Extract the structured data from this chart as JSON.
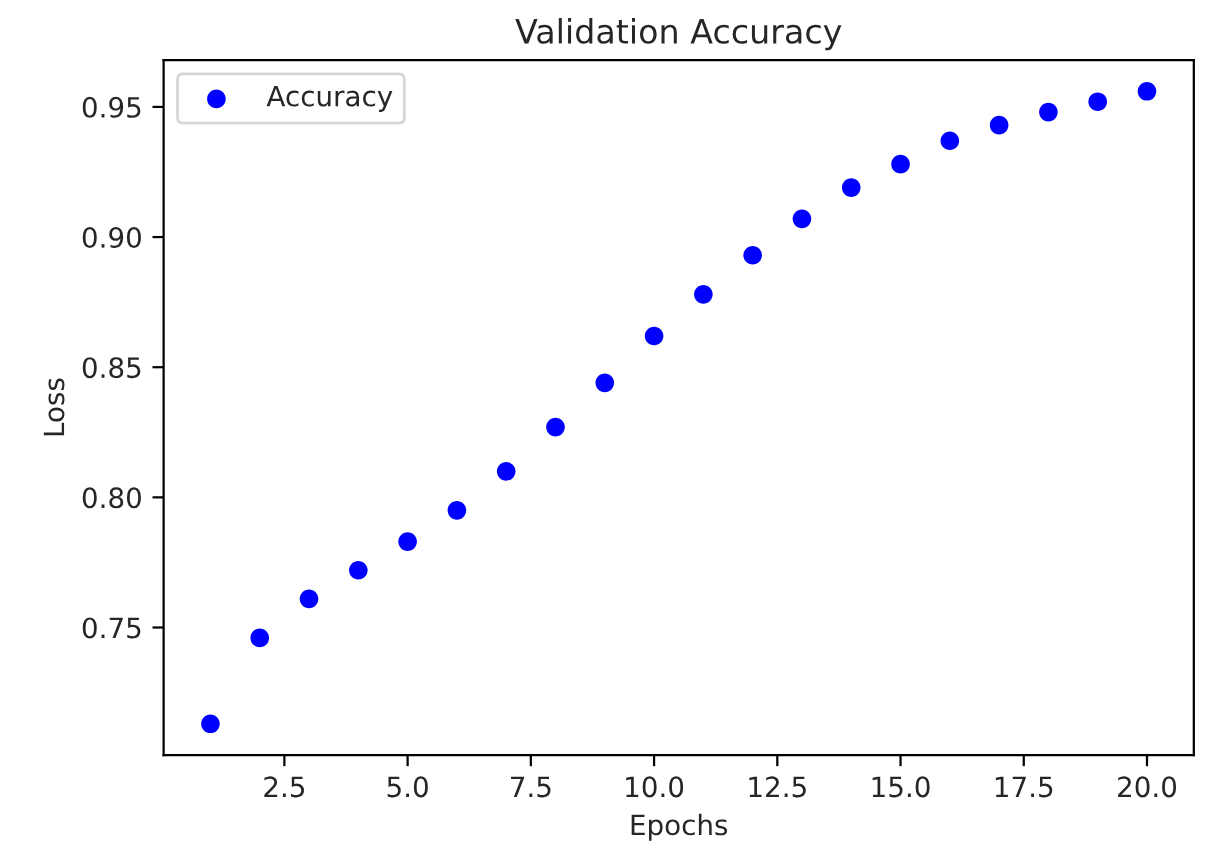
{
  "chart_data": {
    "type": "scatter",
    "title": "Validation Accuracy",
    "xlabel": "Epochs",
    "ylabel": "Loss",
    "x": [
      1,
      2,
      3,
      4,
      5,
      6,
      7,
      8,
      9,
      10,
      11,
      12,
      13,
      14,
      15,
      16,
      17,
      18,
      19,
      20
    ],
    "series": [
      {
        "name": "Accuracy",
        "color": "#0000ff",
        "values": [
          0.713,
          0.746,
          0.761,
          0.772,
          0.783,
          0.795,
          0.81,
          0.827,
          0.844,
          0.862,
          0.878,
          0.893,
          0.907,
          0.919,
          0.928,
          0.937,
          0.943,
          0.948,
          0.952,
          0.956
        ]
      }
    ],
    "xlim": [
      0.05,
      20.95
    ],
    "xticks": [
      2.5,
      {
        "value": 5,
        "label": "5.0"
      },
      7.5,
      {
        "value": 10,
        "label": "10.0"
      },
      12.5,
      {
        "value": 15,
        "label": "15.0"
      },
      17.5,
      {
        "value": 20,
        "label": "20.0"
      }
    ],
    "ylim": [
      0.701,
      0.968
    ],
    "yticks": [
      0.75,
      {
        "value": 0.8,
        "label": "0.80"
      },
      0.85,
      {
        "value": 0.9,
        "label": "0.90"
      },
      0.95
    ],
    "marker": "circle",
    "legend": "top left",
    "grid": false
  }
}
